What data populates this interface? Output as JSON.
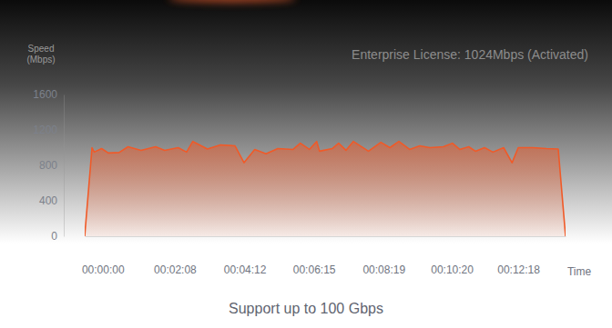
{
  "chart_data": {
    "type": "area",
    "subtitle": "Support up to 100 Gbps",
    "annotations": [
      "Enterprise License: 1024Mbps (Activated)"
    ],
    "y_label": [
      "Speed",
      "(Mbps)"
    ],
    "x_label": "Time",
    "color": "#f05a28",
    "grid": false,
    "x": [
      -32,
      -19,
      -15,
      -2,
      10,
      29,
      45,
      68,
      94,
      110,
      134,
      149,
      160,
      186,
      209,
      235,
      251,
      270,
      290,
      311,
      338,
      351,
      367,
      380,
      385,
      408,
      419,
      432,
      445,
      472,
      494,
      510,
      526,
      545,
      563,
      581,
      605,
      621,
      634,
      650,
      662,
      678,
      693,
      712,
      727,
      738,
      764,
      788,
      809,
      822
    ],
    "values": [
      0,
      1000,
      950,
      990,
      940,
      945,
      1010,
      970,
      1010,
      970,
      1000,
      950,
      1070,
      985,
      1030,
      1020,
      830,
      980,
      930,
      990,
      980,
      1050,
      980,
      1070,
      960,
      990,
      1050,
      970,
      1070,
      960,
      1060,
      1000,
      1070,
      980,
      1020,
      1000,
      1010,
      1050,
      980,
      1010,
      960,
      1000,
      950,
      1000,
      830,
      1000,
      1000,
      990,
      985,
      0
    ],
    "xlim": [
      -32,
      822
    ],
    "xticks": [
      {
        "value": 0,
        "label": "00:00:00"
      },
      {
        "value": 128,
        "label": "00:02:08"
      },
      {
        "value": 252,
        "label": "00:04:12"
      },
      {
        "value": 375,
        "label": "00:06:15"
      },
      {
        "value": 499,
        "label": "00:08:19"
      },
      {
        "value": 620,
        "label": "00:10:20"
      },
      {
        "value": 738,
        "label": "00:12:18"
      }
    ],
    "ylim": [
      0,
      1600
    ],
    "yticks": [
      0,
      400,
      800,
      1200,
      1600
    ]
  }
}
